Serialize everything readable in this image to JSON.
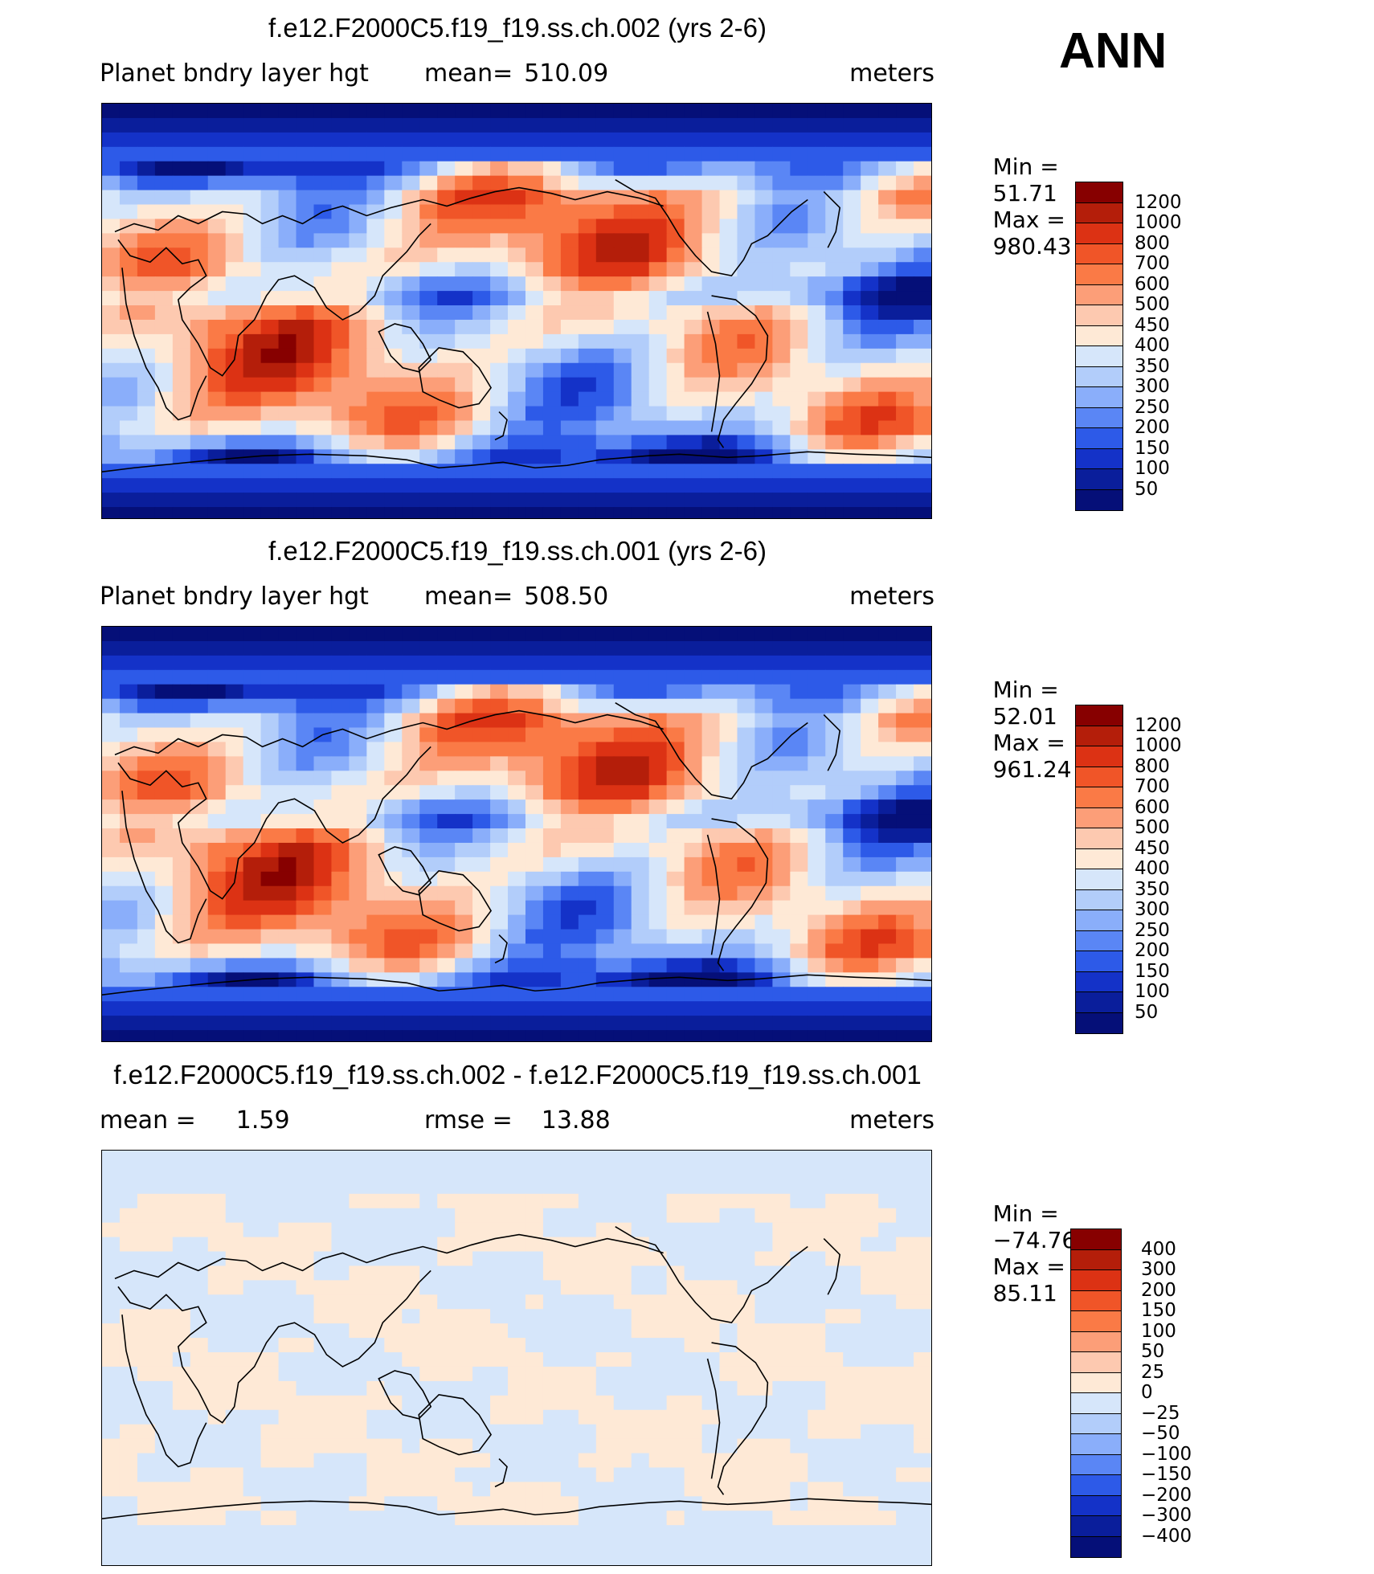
{
  "season": "ANN",
  "panels": [
    {
      "title": "f.e12.F2000C5.f19_f19.ss.ch.002 (yrs 2-6)",
      "variable": "Planet bndry layer hgt",
      "stat_label": "mean=",
      "stat_value": "510.09",
      "units": "meters",
      "min_label": "Min =",
      "min_value": "51.71",
      "max_label": "Max =",
      "max_value": "980.43",
      "levels": [
        "1200",
        "1000",
        "800",
        "700",
        "600",
        "500",
        "450",
        "400",
        "350",
        "300",
        "250",
        "200",
        "150",
        "100",
        "50"
      ],
      "colors": [
        "#870000",
        "#b41e0a",
        "#dc3214",
        "#f05528",
        "#fa7a46",
        "#fc9e78",
        "#fdc9b0",
        "#fee9d6",
        "#d6e6fa",
        "#b2cdfa",
        "#8aaefa",
        "#5a86f5",
        "#2d5ae8",
        "#1432c8",
        "#0a1e9b",
        "#050f78"
      ]
    },
    {
      "title": "f.e12.F2000C5.f19_f19.ss.ch.001 (yrs 2-6)",
      "variable": "Planet bndry layer hgt",
      "stat_label": "mean=",
      "stat_value": "508.50",
      "units": "meters",
      "min_label": "Min =",
      "min_value": "52.01",
      "max_label": "Max =",
      "max_value": "961.24",
      "levels": [
        "1200",
        "1000",
        "800",
        "700",
        "600",
        "500",
        "450",
        "400",
        "350",
        "300",
        "250",
        "200",
        "150",
        "100",
        "50"
      ],
      "colors": [
        "#870000",
        "#b41e0a",
        "#dc3214",
        "#f05528",
        "#fa7a46",
        "#fc9e78",
        "#fdc9b0",
        "#fee9d6",
        "#d6e6fa",
        "#b2cdfa",
        "#8aaefa",
        "#5a86f5",
        "#2d5ae8",
        "#1432c8",
        "#0a1e9b",
        "#050f78"
      ]
    },
    {
      "title": "f.e12.F2000C5.f19_f19.ss.ch.002 - f.e12.F2000C5.f19_f19.ss.ch.001",
      "stat1_label": "mean =",
      "stat1_value": "1.59",
      "stat_label": "rmse =",
      "stat_value": "13.88",
      "units": "meters",
      "min_label": "Min =",
      "min_value": "−74.76",
      "max_label": "Max =",
      "max_value": "85.11",
      "levels": [
        "400",
        "300",
        "200",
        "150",
        "100",
        "50",
        "25",
        "0",
        "−25",
        "−50",
        "−100",
        "−150",
        "−200",
        "−300",
        "−400"
      ],
      "colors": [
        "#870000",
        "#b41e0a",
        "#dc3214",
        "#f05528",
        "#fa7a46",
        "#fc9e78",
        "#fdc9b0",
        "#fee9d6",
        "#d6e6fa",
        "#b2cdfa",
        "#8aaefa",
        "#5a86f5",
        "#2d5ae8",
        "#1432c8",
        "#0a1e9b",
        "#050f78"
      ]
    }
  ]
}
